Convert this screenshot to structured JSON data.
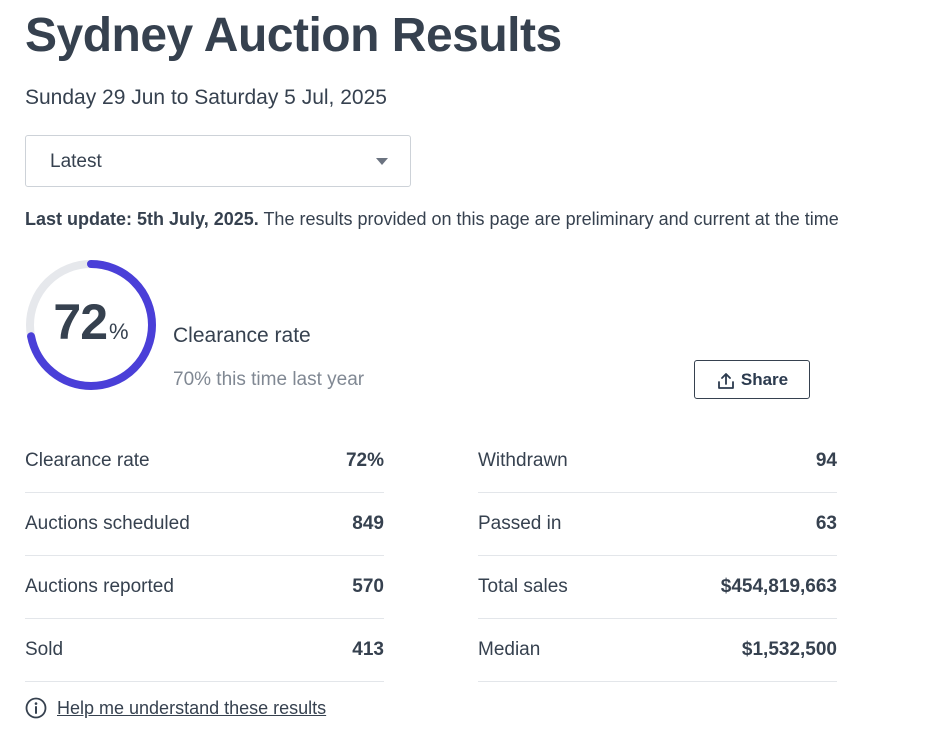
{
  "header": {
    "title": "Sydney Auction Results",
    "date_range": "Sunday 29 Jun to Saturday 5 Jul, 2025"
  },
  "filter": {
    "selected": "Latest"
  },
  "update": {
    "label": "Last update: 5th July, 2025.",
    "note": "The results provided on this page are preliminary and current at the time"
  },
  "clearance": {
    "value": "72",
    "unit": "%",
    "fraction": 0.72,
    "label": "Clearance rate",
    "comparison": "70% this time last year",
    "colors": {
      "progress": "#4a3fd8",
      "track": "#e6e8ec"
    }
  },
  "share": {
    "label": "Share",
    "icon": "upload-share-icon"
  },
  "stats": {
    "left": [
      {
        "label": "Clearance rate",
        "value": "72%"
      },
      {
        "label": "Auctions scheduled",
        "value": "849"
      },
      {
        "label": "Auctions reported",
        "value": "570"
      },
      {
        "label": "Sold",
        "value": "413"
      }
    ],
    "right": [
      {
        "label": "Withdrawn",
        "value": "94"
      },
      {
        "label": "Passed in",
        "value": "63"
      },
      {
        "label": "Total sales",
        "value": "$454,819,663"
      },
      {
        "label": "Median",
        "value": "$1,532,500"
      }
    ]
  },
  "help": {
    "icon": "info-circle-icon",
    "label": "Help me understand these results"
  }
}
